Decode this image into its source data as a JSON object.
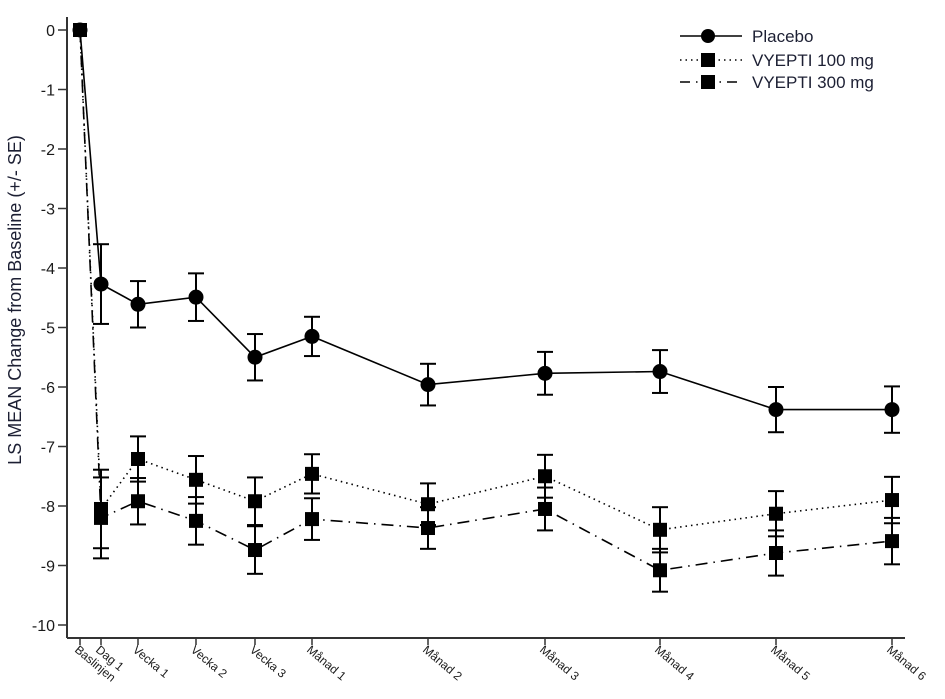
{
  "chart_data": {
    "type": "line",
    "title": "",
    "xlabel": "",
    "ylabel": "LS MEAN Change from Baseline (+/- SE)",
    "ylim": [
      -10,
      0
    ],
    "yticks": [
      0,
      -1,
      -2,
      -3,
      -4,
      -5,
      -6,
      -7,
      -8,
      -9,
      -10
    ],
    "ytick_labels": [
      "0",
      "-1",
      "-2",
      "-3",
      "-4",
      "-5",
      "-6",
      "-7",
      "-8",
      "-9",
      "-10"
    ],
    "grid": false,
    "legend_position": "top-right",
    "categories": [
      "Baslinjen",
      "Dag 1",
      "Vecka 1",
      "Vecka 2",
      "Vecka 3",
      "Månad 1",
      "Månad 2",
      "Månad 3",
      "Månad 4",
      "Månad 5",
      "Månad 6"
    ],
    "x_days": [
      0,
      1,
      7,
      14,
      21,
      28,
      56,
      84,
      112,
      140,
      168
    ],
    "series": [
      {
        "name": "Placebo",
        "marker": "circle",
        "line_style": "solid",
        "values": [
          0,
          -4.27,
          -4.61,
          -4.49,
          -5.5,
          -5.15,
          -5.96,
          -5.77,
          -5.74,
          -6.38,
          -6.38
        ],
        "se": [
          0,
          0.67,
          0.39,
          0.4,
          0.39,
          0.33,
          0.35,
          0.36,
          0.36,
          0.38,
          0.39
        ]
      },
      {
        "name": "VYEPTI 100 mg",
        "marker": "square",
        "line_style": "dotted",
        "values": [
          0,
          -8.05,
          -7.21,
          -7.56,
          -7.92,
          -7.46,
          -7.97,
          -7.5,
          -8.4,
          -8.13,
          -7.9
        ],
        "se": [
          0,
          0.66,
          0.38,
          0.4,
          0.4,
          0.33,
          0.35,
          0.36,
          0.38,
          0.38,
          0.39
        ]
      },
      {
        "name": "VYEPTI 300 mg",
        "marker": "square",
        "line_style": "dashdot",
        "values": [
          0,
          -8.2,
          -7.92,
          -8.25,
          -8.74,
          -8.22,
          -8.37,
          -8.05,
          -9.08,
          -8.79,
          -8.59
        ],
        "se": [
          0,
          0.68,
          0.39,
          0.4,
          0.4,
          0.35,
          0.35,
          0.36,
          0.36,
          0.38,
          0.39
        ]
      }
    ]
  }
}
